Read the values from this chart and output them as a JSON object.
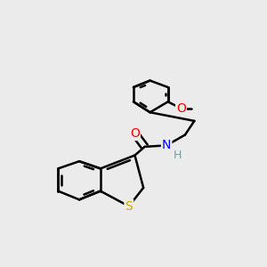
{
  "background_color": "#ebebeb",
  "bond_color": "#000000",
  "atom_colors": {
    "O": "#ff0000",
    "N": "#0000ff",
    "S": "#ccaa00",
    "H": "#70a0a0",
    "C": "#000000"
  },
  "bond_width": 1.8,
  "figsize": [
    3.0,
    3.0
  ],
  "dpi": 100,
  "xlim": [
    -0.5,
    4.5
  ],
  "ylim": [
    -0.5,
    4.5
  ]
}
